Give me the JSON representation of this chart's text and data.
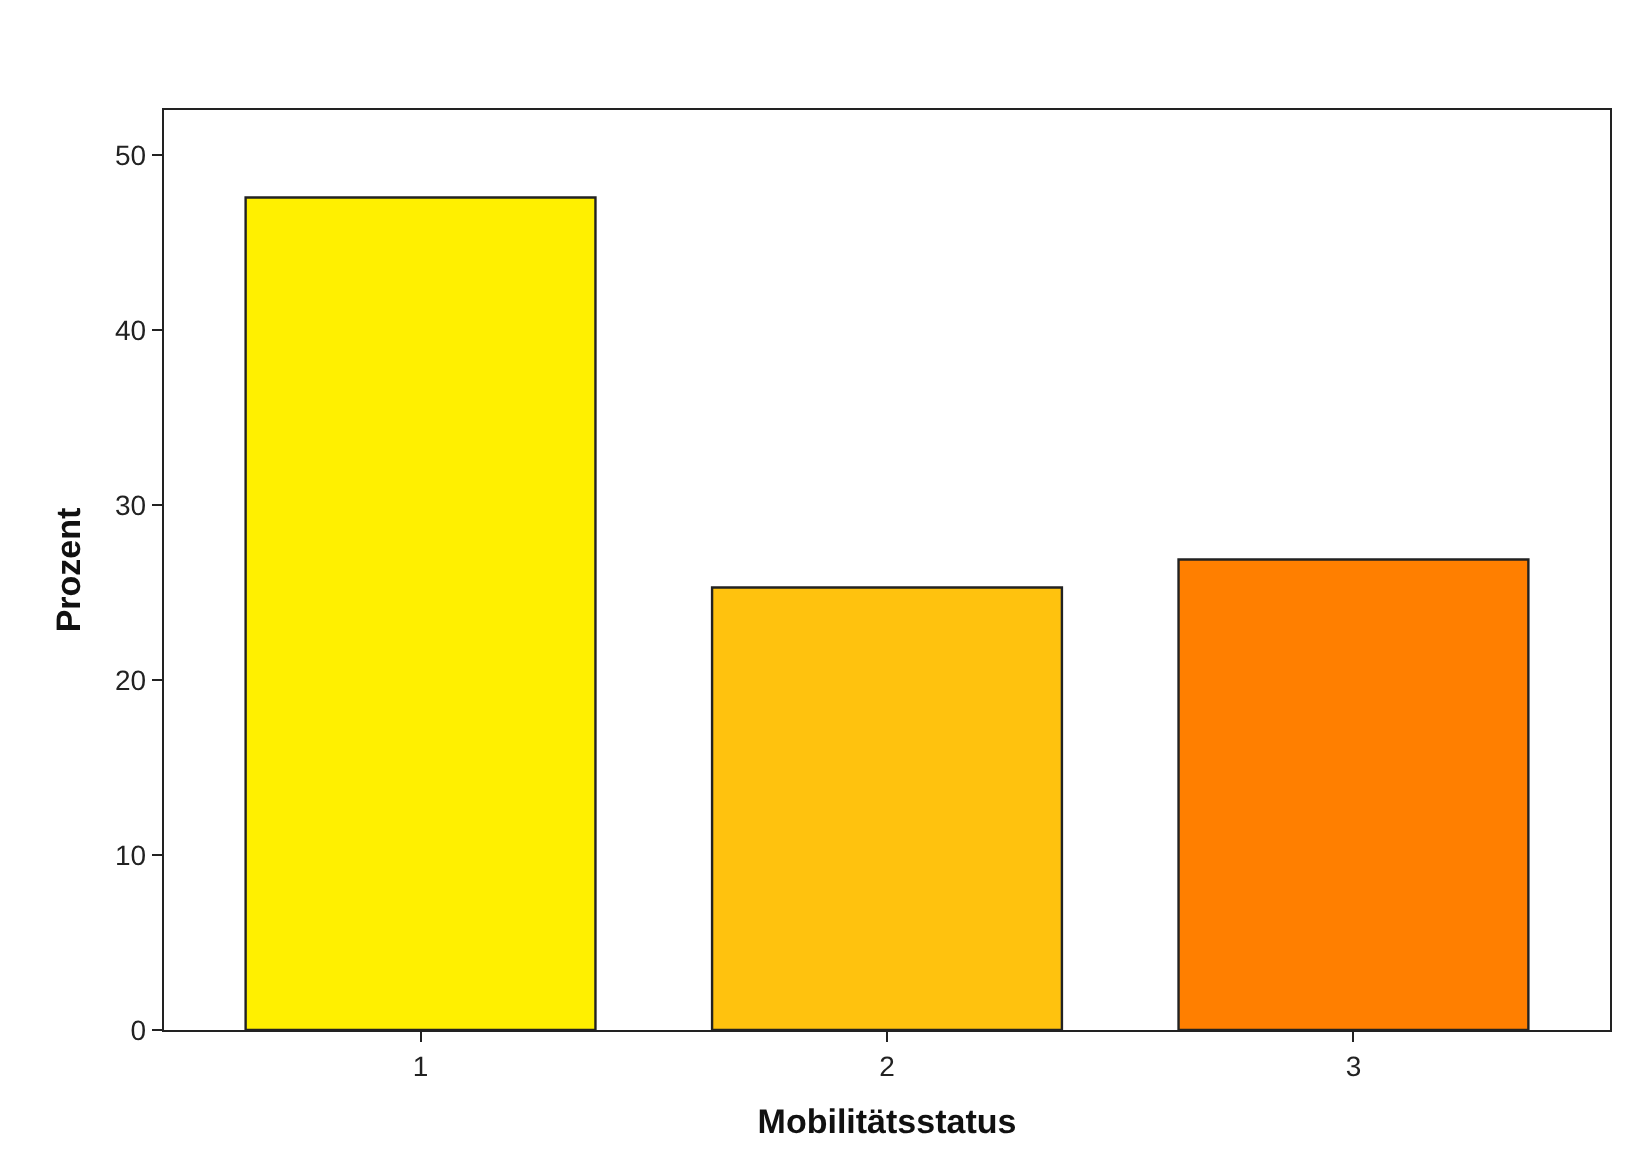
{
  "chart_data": {
    "type": "bar",
    "xlabel": "Mobilitätsstatus",
    "ylabel": "Prozent",
    "categories": [
      "1",
      "2",
      "3"
    ],
    "values": [
      47.6,
      25.3,
      26.9
    ],
    "colors": [
      "#fff000",
      "#ffc20e",
      "#ff7f00"
    ],
    "ylim": [
      0,
      52.6
    ],
    "yticks": [
      0,
      10,
      20,
      30,
      40,
      50
    ],
    "legend": false
  }
}
